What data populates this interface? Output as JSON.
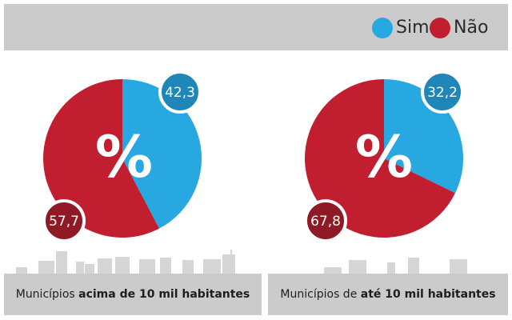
{
  "legend": {
    "sim": {
      "label": "Sim",
      "color": "#27a8e0"
    },
    "nao": {
      "label": "Não",
      "color": "#c11f2f"
    }
  },
  "colors": {
    "sim_badge": "#1e87b8",
    "nao_badge": "#8f1a26",
    "background_bar": "#cbcbcb",
    "skyline": "#d6d6d6"
  },
  "percent_symbol": "%",
  "chart_data": [
    {
      "type": "pie",
      "title": "Municípios acima de 10 mil habitantes",
      "title_parts": [
        "Municípios",
        "acima de 10 mil habitantes"
      ],
      "series": [
        {
          "name": "Sim",
          "value": 42.3,
          "label": "42,3"
        },
        {
          "name": "Não",
          "value": 57.7,
          "label": "57,7"
        }
      ],
      "unit": "%"
    },
    {
      "type": "pie",
      "title": "Municípios de até 10 mil habitantes",
      "title_parts": [
        "Municípios de",
        "até 10 mil habitantes"
      ],
      "series": [
        {
          "name": "Sim",
          "value": 32.2,
          "label": "32,2"
        },
        {
          "name": "Não",
          "value": 67.8,
          "label": "67,8"
        }
      ],
      "unit": "%"
    }
  ]
}
